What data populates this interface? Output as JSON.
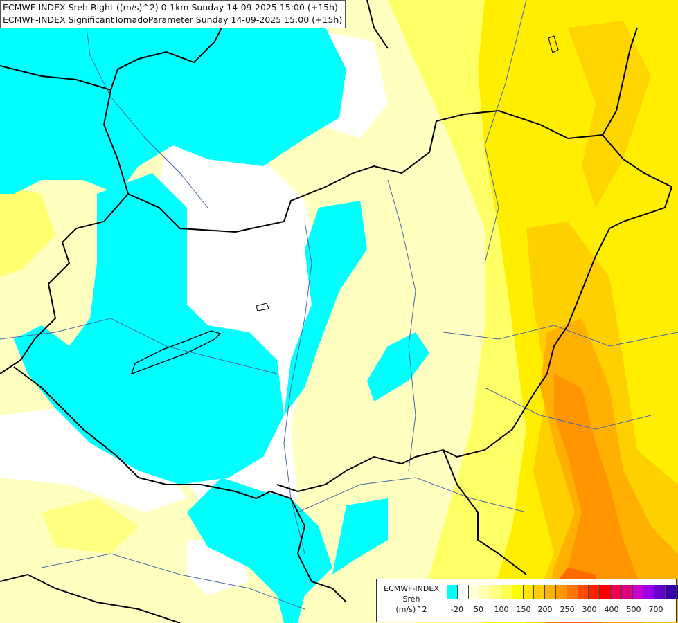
{
  "title": {
    "line1": "ECMWF-INDEX Sreh Right ((m/s)^2) 0-1km Sunday 14-09-2025 15:00 (+15h)",
    "line2": "ECMWF-INDEX SignificantTornadoParameter Sunday 14-09-2025 15:00 (+15h)"
  },
  "legend": {
    "title": "ECMWF-INDEX",
    "subtitle": "Sreh",
    "unit": "(m/s)^2",
    "colors": [
      "#00ffff",
      "#ffffff",
      "#ffffd9",
      "#ffffb0",
      "#ffff80",
      "#ffff4d",
      "#ffff00",
      "#ffe600",
      "#ffcc00",
      "#ffb300",
      "#ff9900",
      "#ff7300",
      "#ff4d00",
      "#ff2200",
      "#ff0000",
      "#f00050",
      "#e00080",
      "#cc00cc",
      "#9900e6",
      "#6600cc",
      "#3300aa",
      "#000080"
    ],
    "tick_labels": [
      "-20",
      "50",
      "100",
      "150",
      "200",
      "250",
      "300",
      "400",
      "500",
      "700"
    ]
  },
  "palette": {
    "cyan": "#00ffff",
    "light_yellow": "#ffffc0",
    "pale_yellow": "#ffff99",
    "yellow": "#ffff33",
    "gold": "#ffdd00",
    "amber": "#ffbb00",
    "orange": "#ff9900",
    "red_orange": "#ff5500",
    "rivers": "#4a66a8",
    "borders": "#000000"
  }
}
